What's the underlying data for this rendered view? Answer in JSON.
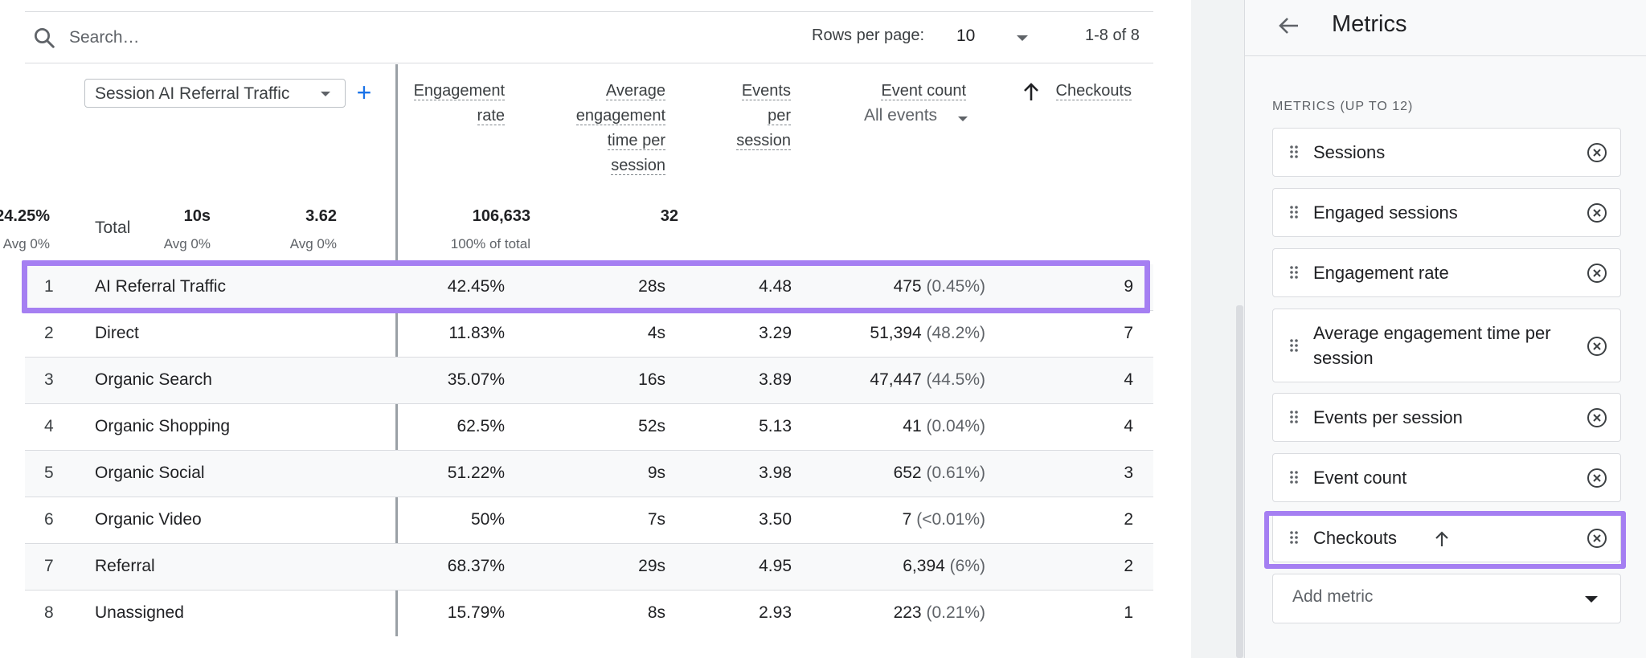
{
  "toolbar": {
    "search_placeholder": "Search…",
    "rows_per_page_label": "Rows per page:",
    "rows_per_page_value": "10",
    "range": "1-8 of 8"
  },
  "table": {
    "dimension_label": "Session AI Referral Traffic",
    "add_dimension_icon": "+",
    "columns": {
      "engagement_rate": [
        "Engagement",
        "rate"
      ],
      "avg_engagement": [
        "Average",
        "engagement",
        "time per",
        "session"
      ],
      "events_per_session": [
        "Events",
        "per",
        "session"
      ],
      "event_count": "Event count",
      "event_filter": "All events",
      "checkouts": "Checkouts"
    },
    "total": {
      "label": "Total",
      "engagement_rate": "24.25%",
      "engagement_rate_sub": "Avg 0%",
      "avg_engagement": "10s",
      "avg_engagement_sub": "Avg 0%",
      "events_per_session": "3.62",
      "events_per_session_sub": "Avg 0%",
      "event_count": "106,633",
      "event_count_sub": "100% of total",
      "checkouts": "32"
    },
    "rows": [
      {
        "idx": "1",
        "name": "AI Referral Traffic",
        "eng": "42.45%",
        "avg": "28s",
        "evs": "4.48",
        "cnt": "475",
        "pct": "(0.45%)",
        "chk": "9"
      },
      {
        "idx": "2",
        "name": "Direct",
        "eng": "11.83%",
        "avg": "4s",
        "evs": "3.29",
        "cnt": "51,394",
        "pct": "(48.2%)",
        "chk": "7"
      },
      {
        "idx": "3",
        "name": "Organic Search",
        "eng": "35.07%",
        "avg": "16s",
        "evs": "3.89",
        "cnt": "47,447",
        "pct": "(44.5%)",
        "chk": "4"
      },
      {
        "idx": "4",
        "name": "Organic Shopping",
        "eng": "62.5%",
        "avg": "52s",
        "evs": "5.13",
        "cnt": "41",
        "pct": "(0.04%)",
        "chk": "4"
      },
      {
        "idx": "5",
        "name": "Organic Social",
        "eng": "51.22%",
        "avg": "9s",
        "evs": "3.98",
        "cnt": "652",
        "pct": "(0.61%)",
        "chk": "3"
      },
      {
        "idx": "6",
        "name": "Organic Video",
        "eng": "50%",
        "avg": "7s",
        "evs": "3.50",
        "cnt": "7",
        "pct": "(<0.01%)",
        "chk": "2"
      },
      {
        "idx": "7",
        "name": "Referral",
        "eng": "68.37%",
        "avg": "29s",
        "evs": "4.95",
        "cnt": "6,394",
        "pct": "(6%)",
        "chk": "2"
      },
      {
        "idx": "8",
        "name": "Unassigned",
        "eng": "15.79%",
        "avg": "8s",
        "evs": "2.93",
        "cnt": "223",
        "pct": "(0.21%)",
        "chk": "1"
      }
    ]
  },
  "panel": {
    "title": "Metrics",
    "section_label": "METRICS (UP TO 12)",
    "metrics": [
      {
        "label": "Sessions"
      },
      {
        "label": "Engaged sessions"
      },
      {
        "label": "Engagement rate"
      },
      {
        "label": "Average engagement time per session"
      },
      {
        "label": "Events per session"
      },
      {
        "label": "Event count"
      },
      {
        "label": "Checkouts"
      }
    ],
    "add_metric_label": "Add metric"
  },
  "colors": {
    "highlight": "#a57ff2",
    "accent": "#1a73e8"
  },
  "icons": [
    "search-icon",
    "chevron-down-icon",
    "plus-icon",
    "arrow-up-icon",
    "arrow-back-icon",
    "drag-handle-icon",
    "remove-circle-icon"
  ]
}
